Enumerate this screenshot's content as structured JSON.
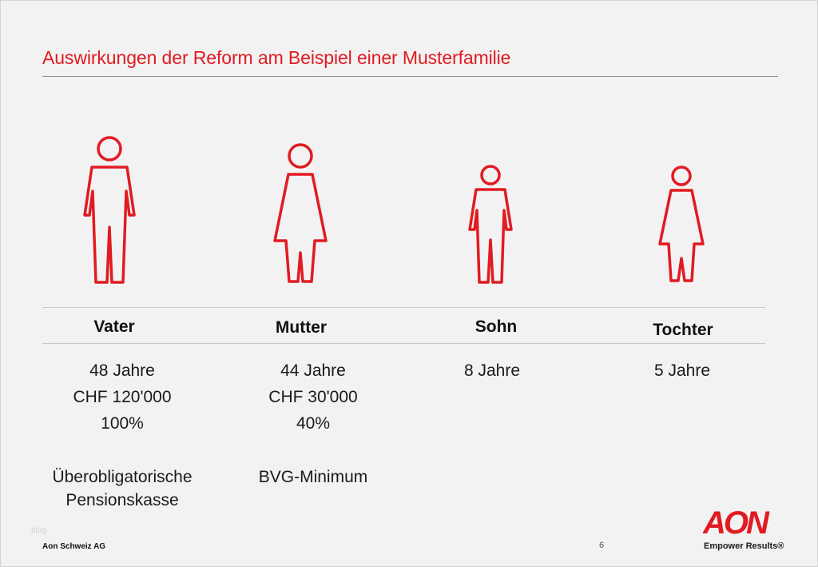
{
  "slide": {
    "title": "Auswirkungen der Reform am Beispiel einer Musterfamilie"
  },
  "family": [
    {
      "name": "Vater",
      "age": "48 Jahre",
      "salary": "CHF 120'000",
      "percentage": "100%",
      "plan_line1": "Überobligatorische",
      "plan_line2": "Pensionskasse",
      "icon": "man-icon"
    },
    {
      "name": "Mutter",
      "age": "44 Jahre",
      "salary": "CHF 30'000",
      "percentage": "40%",
      "plan_line1": "BVG-Minimum",
      "icon": "woman-icon"
    },
    {
      "name": "Sohn",
      "age": "8 Jahre",
      "icon": "boy-icon"
    },
    {
      "name": "Tochter",
      "age": "5 Jahre",
      "icon": "girl-icon"
    }
  ],
  "footer": {
    "company": "Aon Schweiz AG",
    "page_number": "6",
    "watermark": "blog",
    "logo_text": "AON",
    "tagline": "Empower Results®"
  },
  "colors": {
    "accent": "#e11b22",
    "background": "#f2f2f2"
  }
}
